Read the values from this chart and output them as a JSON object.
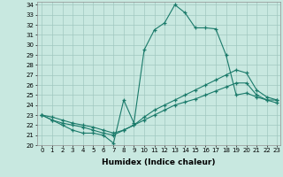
{
  "xlabel": "Humidex (Indice chaleur)",
  "bg_color": "#c8e8e0",
  "grid_color": "#a0c8c0",
  "line_color": "#1a7a6a",
  "xlim": [
    -0.5,
    23.3
  ],
  "ylim": [
    20,
    34.3
  ],
  "xticks": [
    0,
    1,
    2,
    3,
    4,
    5,
    6,
    7,
    8,
    9,
    10,
    11,
    12,
    13,
    14,
    15,
    16,
    17,
    18,
    19,
    20,
    21,
    22,
    23
  ],
  "yticks": [
    20,
    21,
    22,
    23,
    24,
    25,
    26,
    27,
    28,
    29,
    30,
    31,
    32,
    33,
    34
  ],
  "line1_x": [
    0,
    1,
    2,
    3,
    4,
    5,
    6,
    7,
    8,
    9,
    10,
    11,
    12,
    13,
    14,
    15,
    16,
    17,
    18,
    19,
    20,
    21,
    22,
    23
  ],
  "line1_y": [
    23.0,
    22.5,
    22.0,
    21.5,
    21.2,
    21.2,
    21.0,
    20.2,
    24.5,
    22.2,
    29.5,
    31.5,
    32.2,
    34.0,
    33.2,
    31.7,
    31.7,
    31.6,
    29.0,
    25.0,
    25.2,
    24.8,
    24.5,
    24.5
  ],
  "line2_x": [
    0,
    1,
    2,
    3,
    4,
    5,
    6,
    7,
    8,
    9,
    10,
    11,
    12,
    13,
    14,
    15,
    16,
    17,
    18,
    19,
    20,
    21,
    22,
    23
  ],
  "line2_y": [
    23.0,
    22.5,
    22.2,
    22.0,
    21.8,
    21.5,
    21.2,
    21.0,
    21.5,
    22.0,
    22.8,
    23.5,
    24.0,
    24.5,
    25.0,
    25.5,
    26.0,
    26.5,
    27.0,
    27.5,
    27.2,
    25.5,
    24.8,
    24.5
  ],
  "line3_x": [
    0,
    1,
    2,
    3,
    4,
    5,
    6,
    7,
    8,
    9,
    10,
    11,
    12,
    13,
    14,
    15,
    16,
    17,
    18,
    19,
    20,
    21,
    22,
    23
  ],
  "line3_y": [
    23.0,
    22.8,
    22.5,
    22.2,
    22.0,
    21.8,
    21.5,
    21.2,
    21.5,
    22.0,
    22.5,
    23.0,
    23.5,
    24.0,
    24.3,
    24.6,
    25.0,
    25.4,
    25.8,
    26.2,
    26.2,
    25.0,
    24.5,
    24.2
  ]
}
